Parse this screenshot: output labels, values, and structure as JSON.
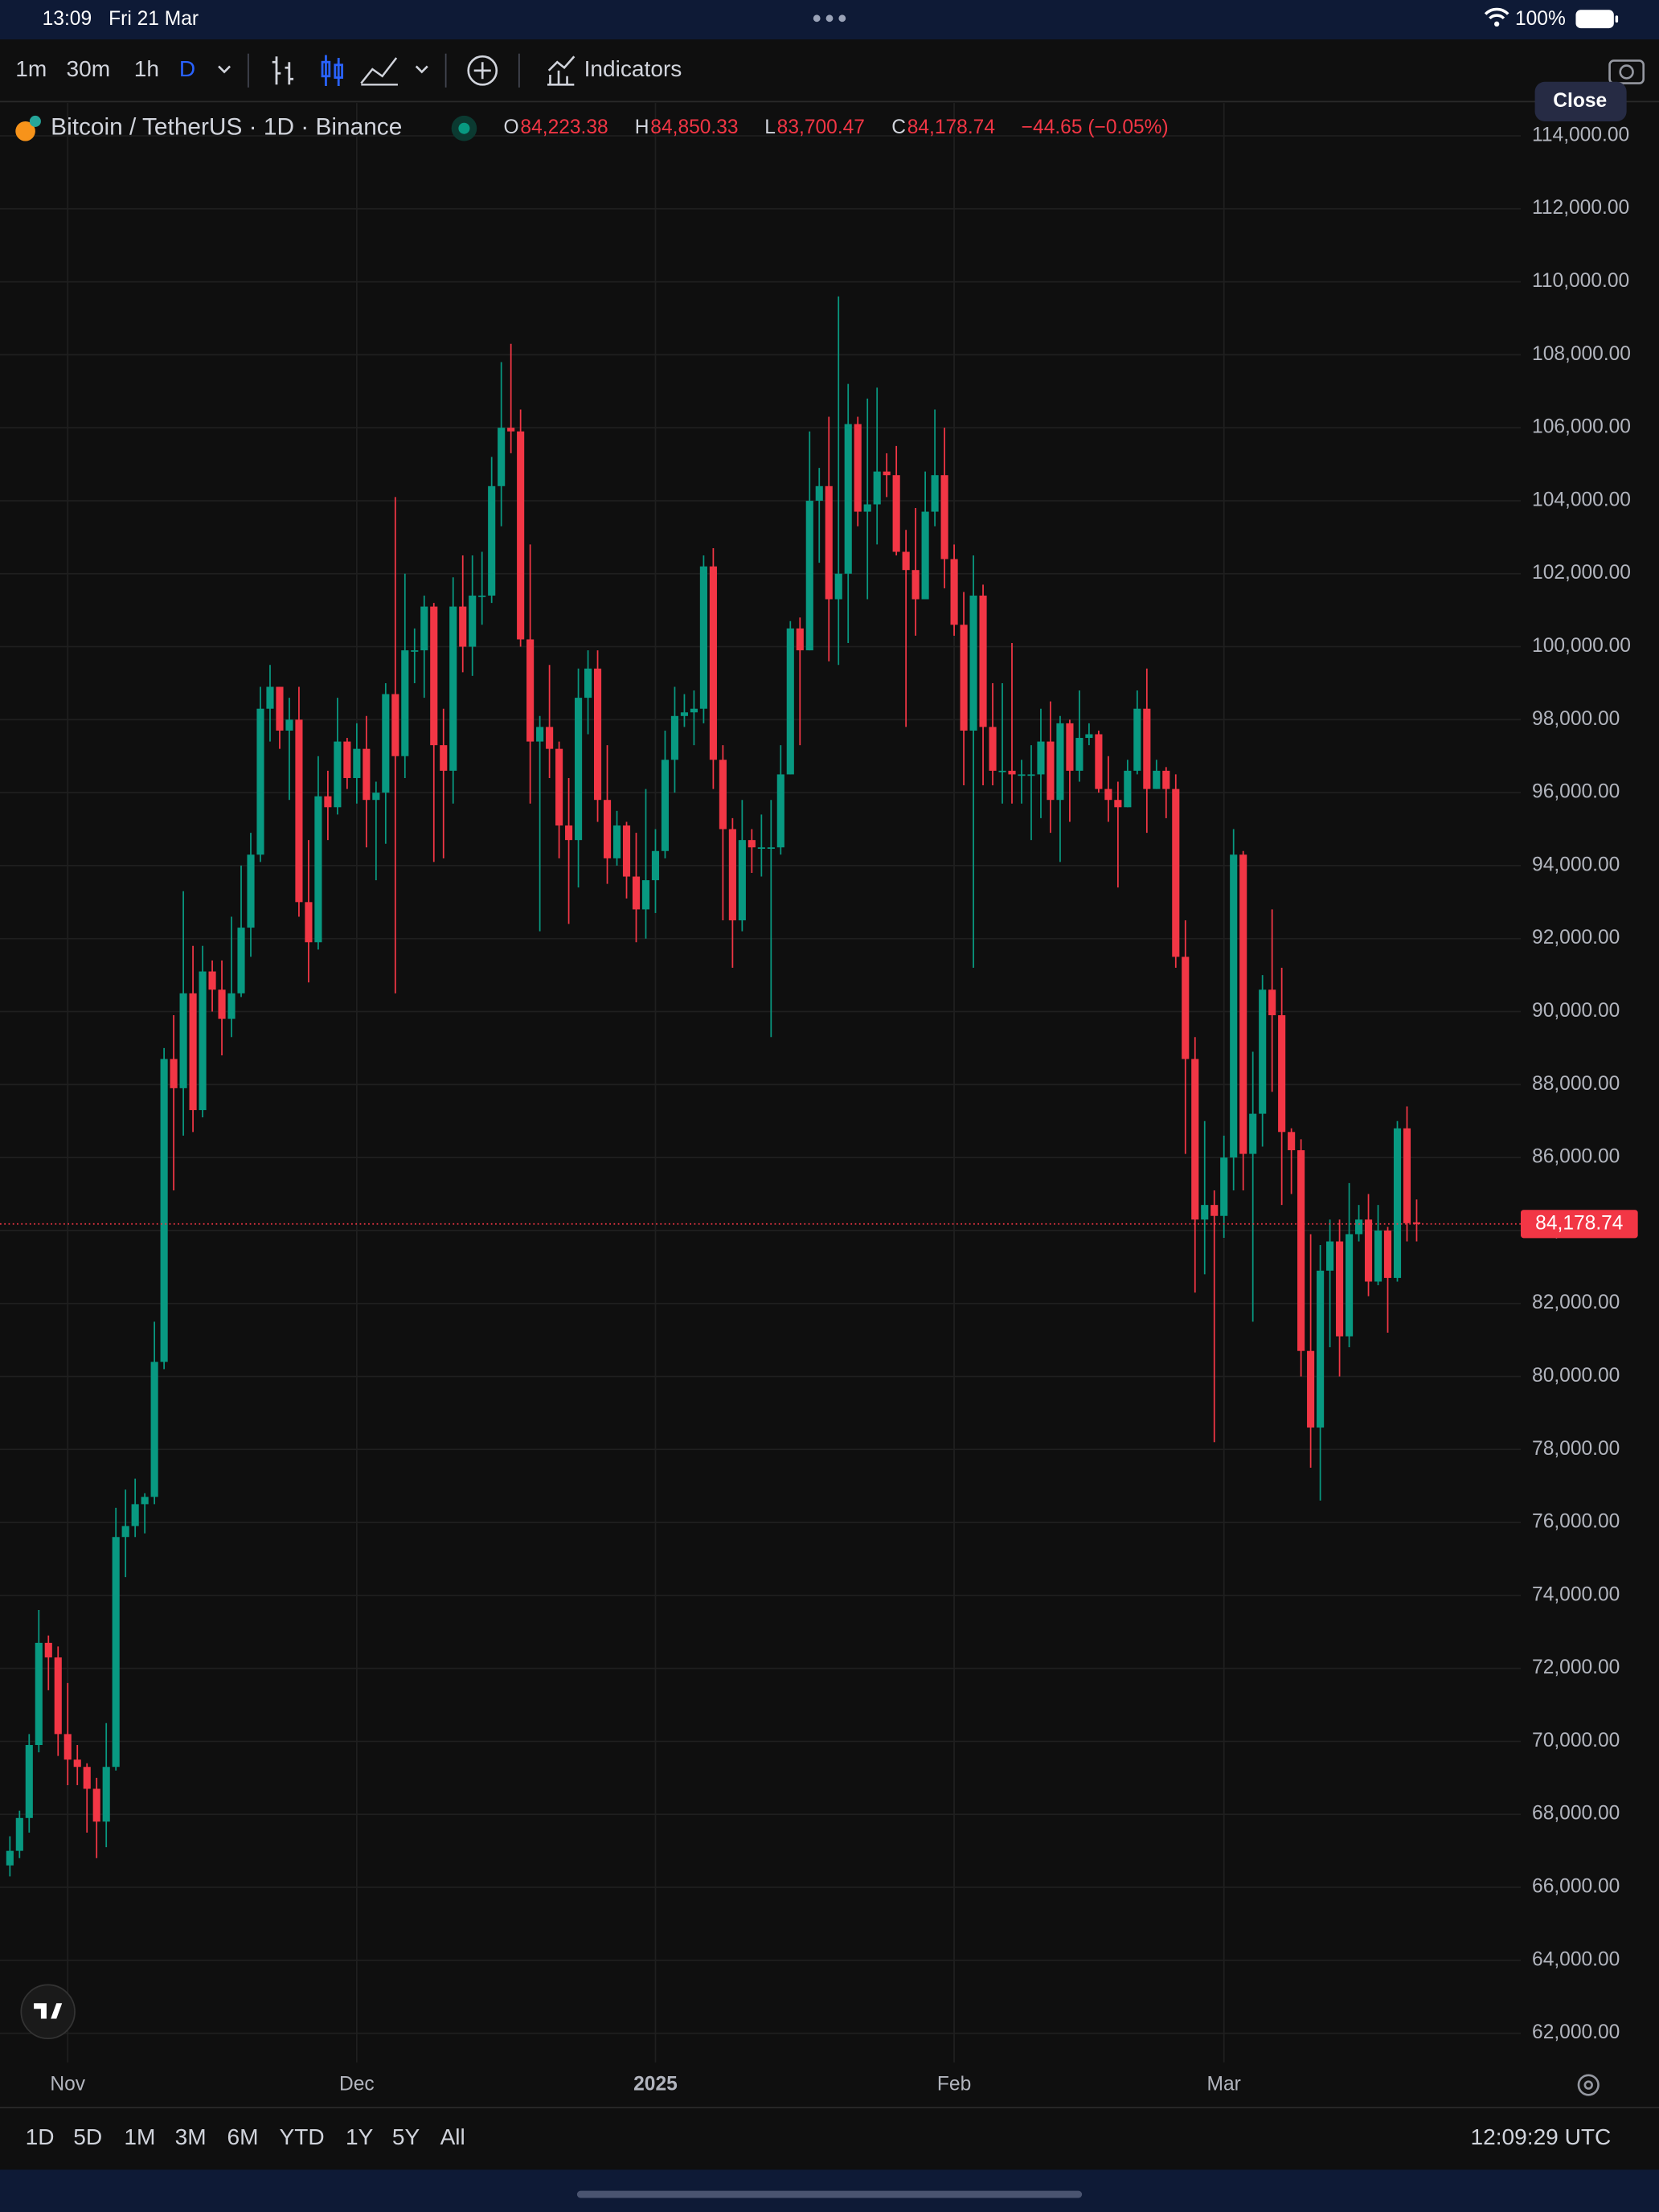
{
  "status_bar": {
    "time": "13:09",
    "date": "Fri 21 Mar",
    "battery": "100%"
  },
  "toolbar": {
    "intervals": [
      "1m",
      "30m",
      "1h",
      "D"
    ],
    "indicators": "Indicators",
    "close": "Close"
  },
  "range_bar": {
    "ranges": [
      "1D",
      "5D",
      "1M",
      "3M",
      "6M",
      "YTD",
      "1Y",
      "5Y",
      "All"
    ],
    "clock": "12:09:29 UTC"
  },
  "chart_data": {
    "type": "candlestick",
    "title": "Bitcoin / TetherUS · 1D · Binance",
    "ohlc_legend": [
      {
        "key": "O",
        "value": "84,223.38"
      },
      {
        "key": "H",
        "value": "84,850.33"
      },
      {
        "key": "L",
        "value": "83,700.47"
      },
      {
        "key": "C",
        "value": "84,178.74"
      }
    ],
    "change": "−44.65 (−0.05%)",
    "up_color": "#089981",
    "down_color": "#f23645",
    "series": [
      {
        "open": [
          66600,
          67000,
          67900,
          69900,
          72700,
          72300,
          70200,
          69500,
          69300,
          68700,
          67800,
          69300,
          75600,
          75900,
          76500,
          76700,
          80400,
          88700,
          87900,
          90500,
          87300,
          91100,
          90600,
          89800,
          90500,
          92300,
          94300,
          98300,
          98900,
          97700,
          98000,
          93000,
          91900,
          95900,
          95600,
          97400,
          96400,
          97200,
          95800,
          96000,
          98700,
          97000,
          99900,
          99900,
          101100,
          97300,
          96600,
          101100,
          100000,
          101400,
          101400,
          104400,
          106000,
          105900,
          100200,
          97400,
          97800,
          97200,
          95100,
          94700,
          98600,
          99400,
          95800,
          94200,
          95100,
          93700,
          92800,
          93600,
          94400,
          96900,
          98100,
          98200,
          98300,
          102200,
          96900,
          95000,
          92500,
          94700,
          94500,
          94500,
          94500,
          96500,
          100500,
          99900,
          104000,
          104400,
          101300,
          102000,
          106100,
          103700,
          103900,
          104800,
          104700,
          102600,
          102100,
          101300,
          103700,
          104700,
          102400,
          100600,
          97700,
          101400,
          97800,
          96600,
          96600,
          96500,
          96500,
          96500,
          97400,
          95800,
          97900,
          96600,
          97500,
          97600,
          96100,
          95800,
          95600,
          96600,
          98300,
          96100,
          96600,
          96100,
          91500,
          88700,
          84300,
          84700,
          84400,
          86000,
          94300,
          86100,
          87200,
          90600,
          89900,
          86700,
          86200,
          80700,
          78600,
          82900,
          83700,
          81100,
          83900,
          84300,
          82600,
          84000,
          82700,
          86800,
          84223.38
        ],
        "high": [
          67400,
          68100,
          70200,
          73600,
          72900,
          72600,
          71600,
          69900,
          69400,
          69000,
          70500,
          76400,
          76900,
          77200,
          76800,
          81500,
          89000,
          89900,
          93300,
          91800,
          91800,
          91400,
          91400,
          92600,
          94000,
          94900,
          98900,
          99500,
          98900,
          98600,
          98900,
          94700,
          97000,
          96600,
          98600,
          97500,
          97900,
          98100,
          96300,
          99000,
          104100,
          102000,
          100500,
          101400,
          101200,
          98300,
          101900,
          102500,
          102500,
          102600,
          105200,
          107800,
          108300,
          106500,
          102800,
          98100,
          99500,
          97400,
          96400,
          99400,
          99900,
          99900,
          97300,
          95500,
          95200,
          94900,
          96100,
          95000,
          97700,
          98900,
          98700,
          98800,
          102500,
          102700,
          97300,
          95300,
          95800,
          95000,
          95400,
          95800,
          97300,
          100700,
          100800,
          105900,
          104900,
          106300,
          109600,
          107200,
          106300,
          106800,
          107100,
          105300,
          105500,
          103200,
          103800,
          104800,
          106500,
          106000,
          102800,
          101500,
          102500,
          101700,
          99000,
          99000,
          100100,
          96900,
          97300,
          98300,
          98500,
          98100,
          98000,
          98800,
          97900,
          97700,
          97000,
          96300,
          96900,
          98800,
          99400,
          96900,
          96700,
          96500,
          92500,
          89300,
          87000,
          85100,
          86600,
          95000,
          94400,
          88900,
          91000,
          92800,
          91200,
          86800,
          86500,
          83900,
          83600,
          84300,
          84300,
          85300,
          84700,
          85000,
          84700,
          84100,
          87000,
          87400,
          84850.33
        ],
        "low": [
          66300,
          66800,
          67500,
          69700,
          71400,
          69600,
          68800,
          68800,
          67500,
          66800,
          67100,
          69200,
          74500,
          75600,
          75700,
          76500,
          80200,
          85100,
          86600,
          86700,
          87100,
          90000,
          88800,
          89300,
          90400,
          91500,
          94100,
          97400,
          97200,
          95800,
          92600,
          90800,
          91700,
          94700,
          95400,
          96100,
          95700,
          94500,
          93600,
          94600,
          90500,
          96400,
          99000,
          98600,
          94100,
          94200,
          95700,
          99300,
          99200,
          100600,
          101200,
          103300,
          105300,
          100000,
          95700,
          92200,
          96400,
          94200,
          92400,
          93400,
          97600,
          95200,
          93500,
          94000,
          93100,
          91900,
          92000,
          92700,
          94200,
          96000,
          97800,
          97300,
          97900,
          96100,
          92500,
          91200,
          92200,
          93800,
          93700,
          89300,
          94300,
          96500,
          97300,
          99900,
          102300,
          99600,
          99500,
          100100,
          103300,
          101300,
          102800,
          104100,
          102500,
          97800,
          100300,
          101300,
          103300,
          101600,
          100300,
          96200,
          91200,
          96200,
          96200,
          95700,
          95700,
          95700,
          94700,
          95300,
          94900,
          94100,
          95200,
          96300,
          97300,
          96000,
          95200,
          93400,
          95600,
          96500,
          94900,
          96100,
          95300,
          91200,
          86100,
          82300,
          82800,
          78200,
          83800,
          85100,
          85100,
          81500,
          86300,
          87800,
          84700,
          85000,
          80000,
          77500,
          76600,
          80800,
          80000,
          80800,
          83700,
          82200,
          82500,
          81200,
          82600,
          83700,
          83700.47
        ],
        "close": [
          67000,
          67900,
          69900,
          72700,
          72300,
          70200,
          69500,
          69300,
          68700,
          67800,
          69300,
          75600,
          75900,
          76500,
          76700,
          80400,
          88700,
          87900,
          90500,
          87300,
          91100,
          90600,
          89800,
          90500,
          92300,
          94300,
          98300,
          98900,
          97700,
          98000,
          93000,
          91900,
          95900,
          95600,
          97400,
          96400,
          97200,
          95800,
          96000,
          98700,
          97000,
          99900,
          99900,
          101100,
          97300,
          96600,
          101100,
          100000,
          101400,
          101400,
          104400,
          106000,
          105900,
          100200,
          97400,
          97800,
          97200,
          95100,
          94700,
          98600,
          99400,
          95800,
          94200,
          95100,
          93700,
          92800,
          93600,
          94400,
          96900,
          98100,
          98200,
          98300,
          102200,
          96900,
          95000,
          92500,
          94700,
          94500,
          94500,
          94500,
          96500,
          100500,
          99900,
          104000,
          104400,
          101300,
          102000,
          106100,
          103700,
          103900,
          104800,
          104700,
          102600,
          102100,
          101300,
          103700,
          104700,
          102400,
          100600,
          97700,
          101400,
          97800,
          96600,
          96600,
          96500,
          96500,
          96500,
          97400,
          95800,
          97900,
          96600,
          97500,
          97600,
          96100,
          95800,
          95600,
          96600,
          98300,
          96100,
          96600,
          96100,
          91500,
          88700,
          84300,
          84700,
          84400,
          86000,
          94300,
          86100,
          87200,
          90600,
          89900,
          86700,
          86200,
          80700,
          78600,
          82900,
          83700,
          81100,
          83900,
          84300,
          82600,
          84000,
          82700,
          86800,
          84200,
          84178.74
        ]
      }
    ],
    "last_price": {
      "value": 84178.74,
      "label": "84,178.74"
    },
    "ylim": [
      61200,
      114900
    ],
    "yticks": [
      {
        "value": 62000,
        "label": "62,000.00"
      },
      {
        "value": 64000,
        "label": "64,000.00"
      },
      {
        "value": 66000,
        "label": "66,000.00"
      },
      {
        "value": 68000,
        "label": "68,000.00"
      },
      {
        "value": 70000,
        "label": "70,000.00"
      },
      {
        "value": 72000,
        "label": "72,000.00"
      },
      {
        "value": 74000,
        "label": "74,000.00"
      },
      {
        "value": 76000,
        "label": "76,000.00"
      },
      {
        "value": 78000,
        "label": "78,000.00"
      },
      {
        "value": 80000,
        "label": "80,000.00"
      },
      {
        "value": 82000,
        "label": "82,000.00"
      },
      {
        "value": 84000,
        "label": "84,000.00"
      },
      {
        "value": 86000,
        "label": "86,000.00"
      },
      {
        "value": 88000,
        "label": "88,000.00"
      },
      {
        "value": 90000,
        "label": "90,000.00"
      },
      {
        "value": 92000,
        "label": "92,000.00"
      },
      {
        "value": 94000,
        "label": "94,000.00"
      },
      {
        "value": 96000,
        "label": "96,000.00"
      },
      {
        "value": 98000,
        "label": "98,000.00"
      },
      {
        "value": 100000,
        "label": "100,000.00"
      },
      {
        "value": 102000,
        "label": "102,000.00"
      },
      {
        "value": 104000,
        "label": "104,000.00"
      },
      {
        "value": 106000,
        "label": "106,000.00"
      },
      {
        "value": 108000,
        "label": "108,000.00"
      },
      {
        "value": 110000,
        "label": "110,000.00"
      },
      {
        "value": 112000,
        "label": "112,000.00"
      },
      {
        "value": 114000,
        "label": "114,000.00"
      }
    ],
    "xticks": [
      {
        "value": 6,
        "label": "Nov"
      },
      {
        "value": 36,
        "label": "Dec"
      },
      {
        "value": 67,
        "label": "2025"
      },
      {
        "value": 98,
        "label": "Feb"
      },
      {
        "value": 126,
        "label": "Mar"
      }
    ],
    "grid": true
  }
}
